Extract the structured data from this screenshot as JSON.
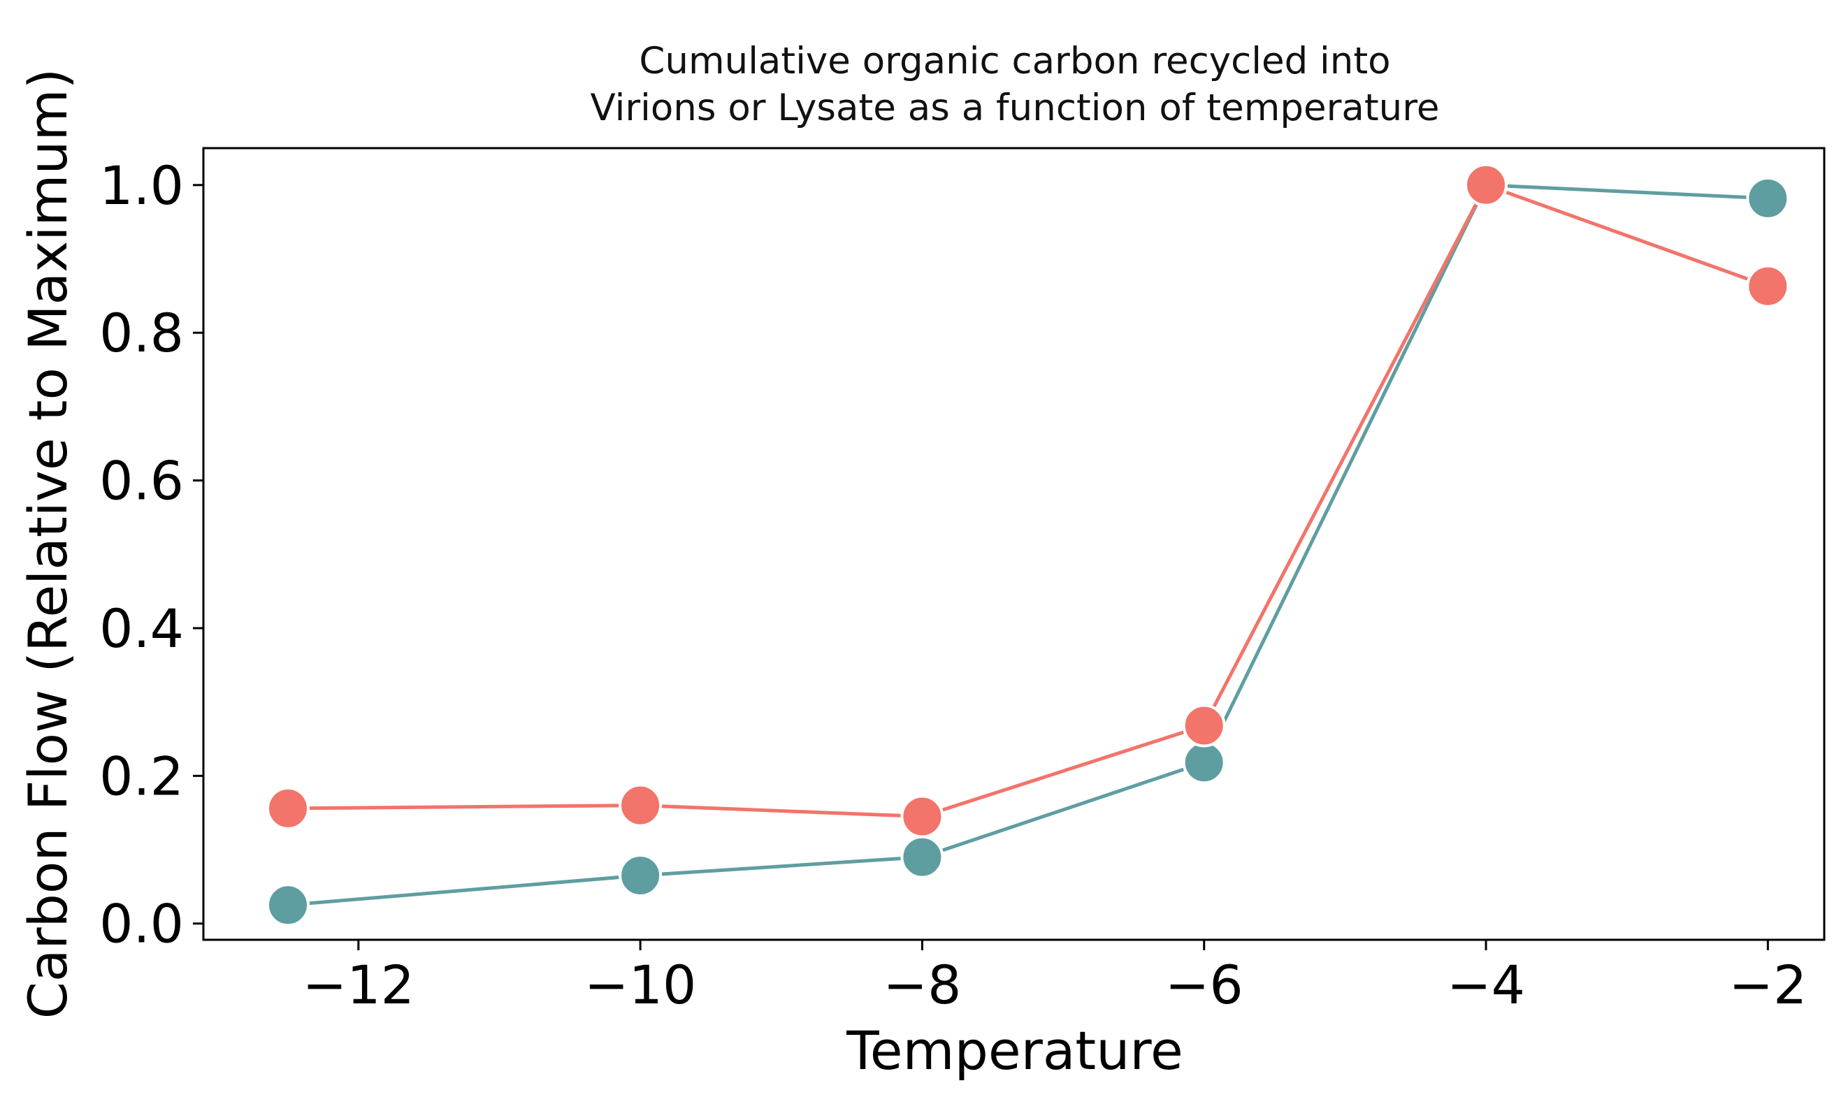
{
  "chart_data": {
    "type": "line",
    "title_lines": [
      "Cumulative organic carbon recycled into",
      "Virions or Lysate as a function of temperature"
    ],
    "xlabel": "Temperature",
    "ylabel": "Carbon Flow (Relative to Maximum)",
    "xlim": [
      -13.1,
      -1.6
    ],
    "ylim": [
      -0.022,
      1.05
    ],
    "x_ticks": [
      -12,
      -10,
      -8,
      -6,
      -4,
      -2
    ],
    "x_tick_labels": [
      "−12",
      "−10",
      "−8",
      "−6",
      "−4",
      "−2"
    ],
    "y_ticks": [
      0.0,
      0.2,
      0.4,
      0.6,
      0.8,
      1.0
    ],
    "y_tick_labels": [
      "0.0",
      "0.2",
      "0.4",
      "0.6",
      "0.8",
      "1.0"
    ],
    "grid": false,
    "legend": "none",
    "x": [
      -12.5,
      -10,
      -8,
      -6,
      -4,
      -2
    ],
    "series": [
      {
        "color": "#5f9ea0",
        "values": [
          0.025,
          0.065,
          0.09,
          0.218,
          1.0,
          0.982
        ]
      },
      {
        "color": "#f2746a",
        "values": [
          0.156,
          0.16,
          0.145,
          0.268,
          1.0,
          0.863
        ]
      }
    ]
  }
}
